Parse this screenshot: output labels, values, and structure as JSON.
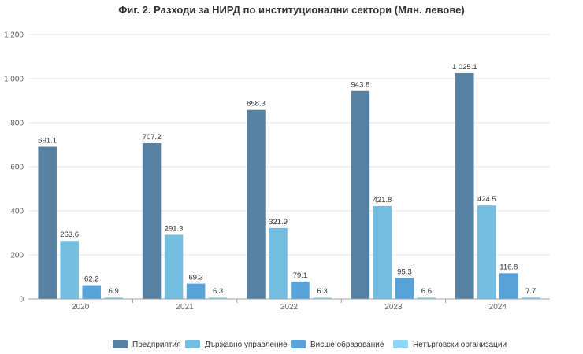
{
  "chart_data": {
    "type": "bar",
    "title": "Фиг. 2. Разходи за НИРД по институционални сектори (Млн. левове)",
    "categories": [
      "2020",
      "2021",
      "2022",
      "2023",
      "2024"
    ],
    "series": [
      {
        "name": "Предприятия",
        "color": "#5681a2",
        "values": [
          691.1,
          707.2,
          858.3,
          943.8,
          1025.1
        ],
        "labels": [
          "691.1",
          "707.2",
          "858.3",
          "943.8",
          "1 025.1"
        ]
      },
      {
        "name": "Държавно управление",
        "color": "#72bde0",
        "values": [
          263.6,
          291.3,
          321.9,
          421.8,
          424.5
        ],
        "labels": [
          "263.6",
          "291.3",
          "321.9",
          "421.8",
          "424.5"
        ]
      },
      {
        "name": "Висше образование",
        "color": "#56a2d9",
        "values": [
          62.2,
          69.3,
          79.1,
          95.3,
          116.8
        ],
        "labels": [
          "62.2",
          "69.3",
          "79.1",
          "95.3",
          "116.8"
        ]
      },
      {
        "name": "Нетърговски организации",
        "color": "#8fd7f5",
        "values": [
          6.9,
          6.3,
          6.3,
          6.6,
          7.7
        ],
        "labels": [
          "6.9",
          "6.3",
          "6.3",
          "6.6",
          "7.7"
        ]
      }
    ],
    "ylim": [
      0,
      1200
    ],
    "yticks": [
      0,
      200,
      400,
      600,
      800,
      1000,
      1200
    ],
    "ytick_labels": [
      "0",
      "200",
      "400",
      "600",
      "800",
      "1 000",
      "1 200"
    ],
    "grid": true,
    "legend_position": "bottom"
  }
}
